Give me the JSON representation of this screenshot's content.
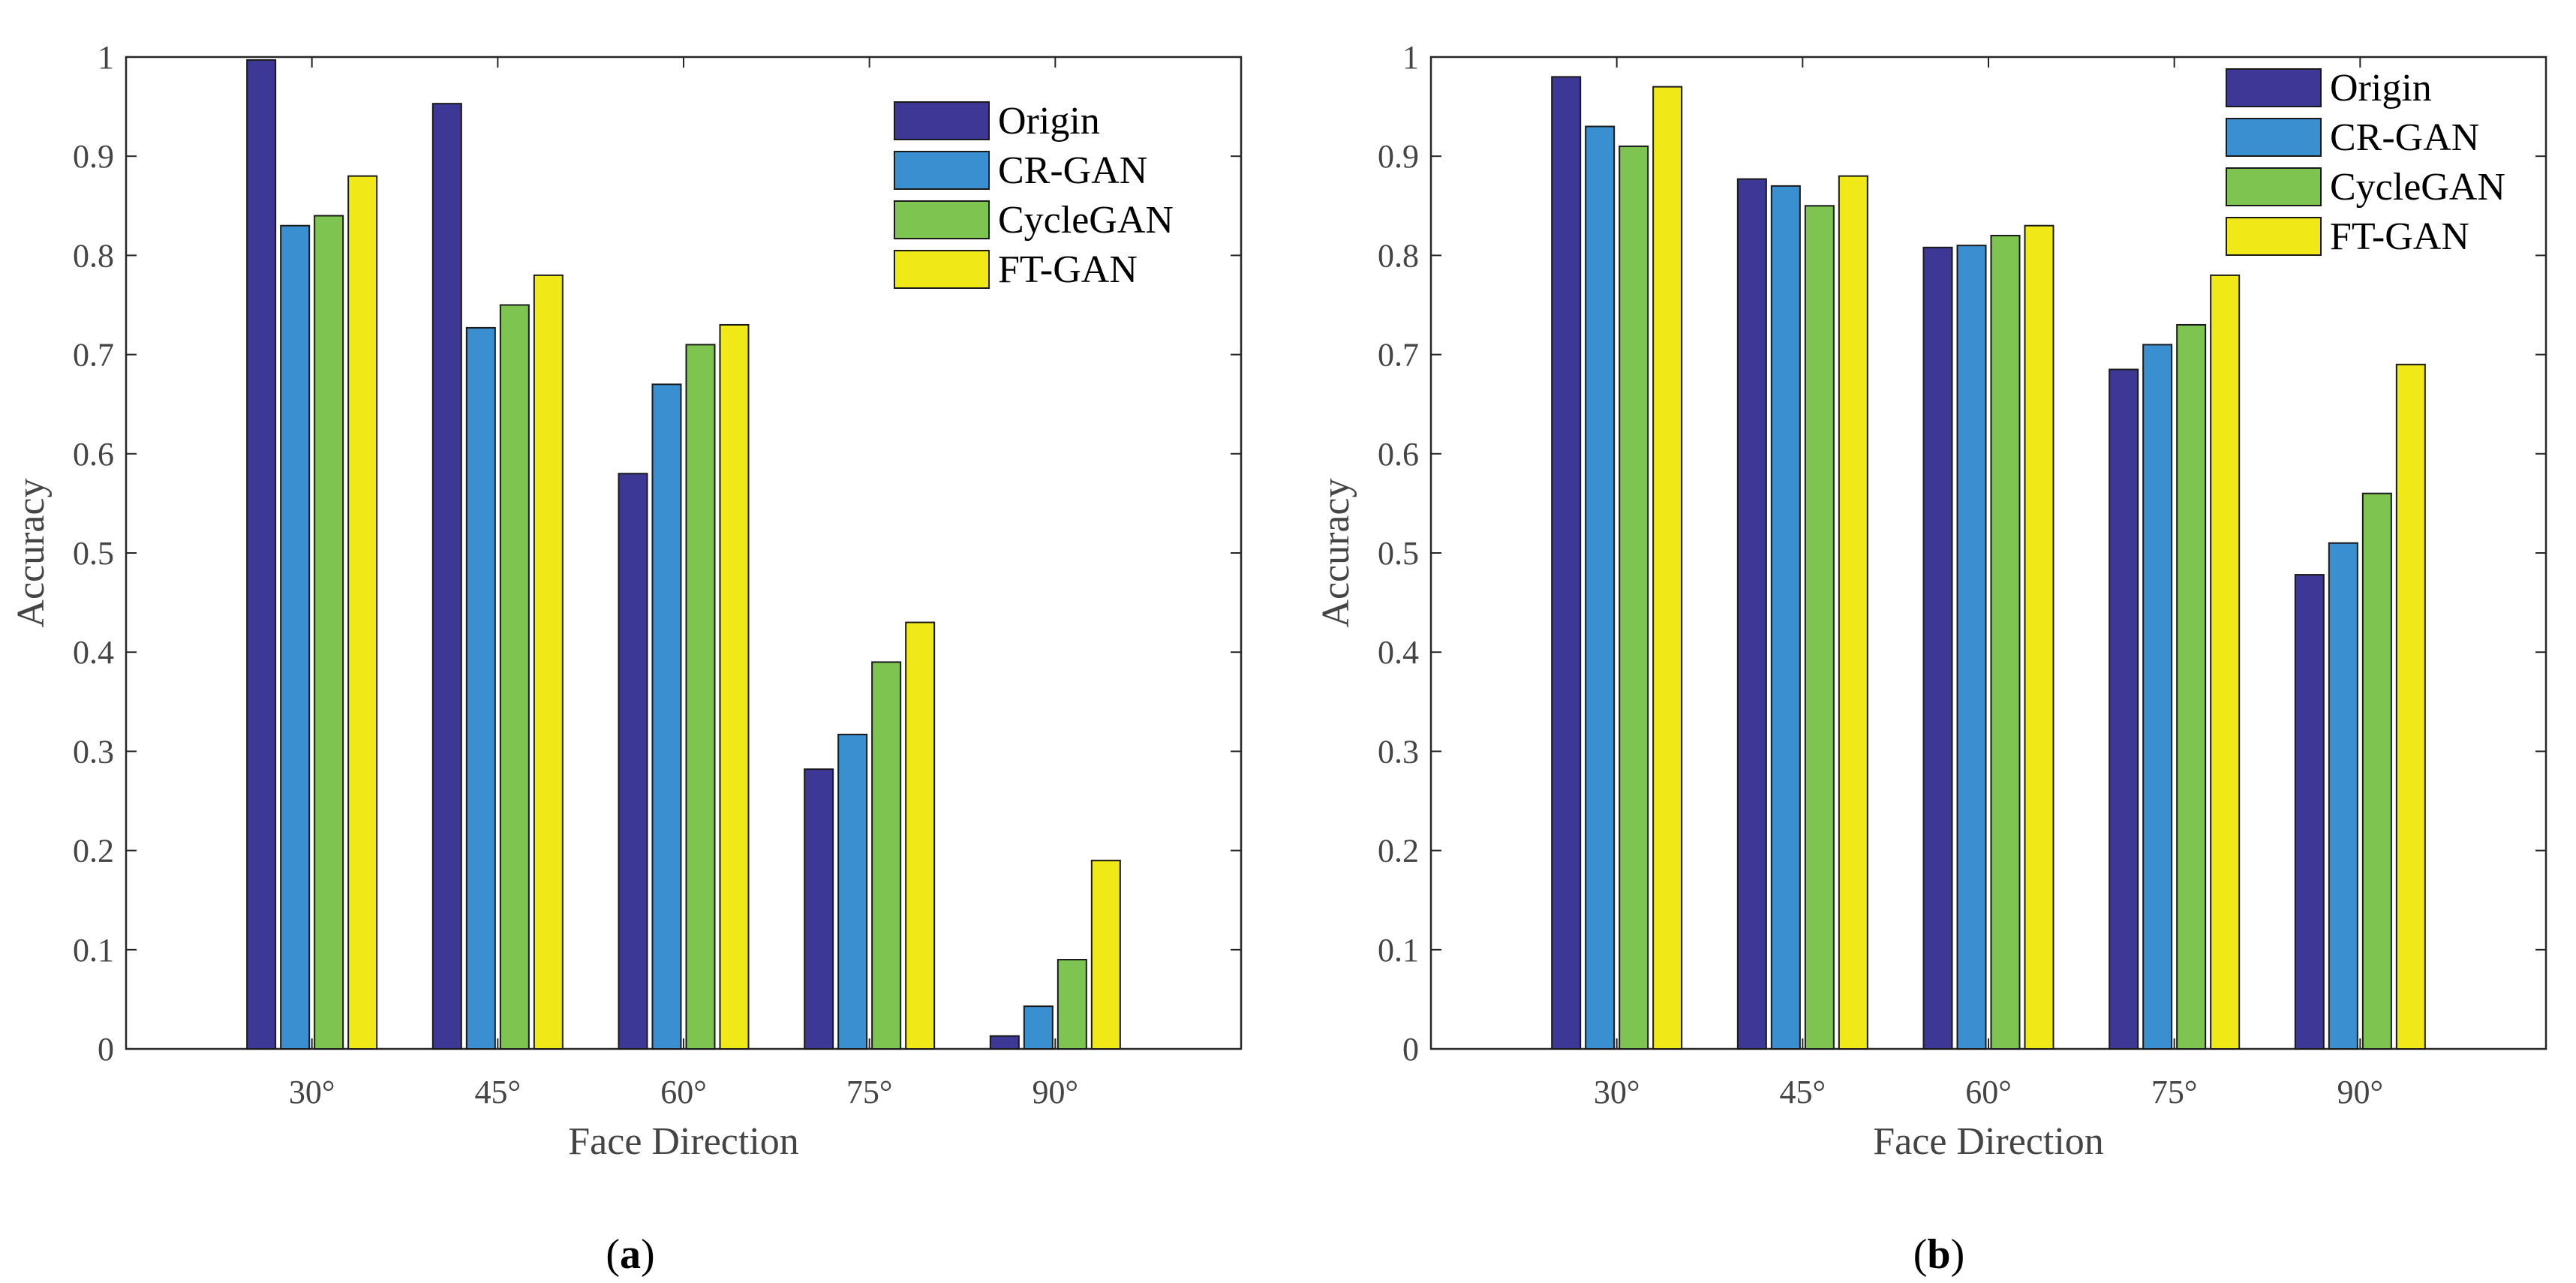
{
  "chart_data": [
    {
      "type": "bar",
      "panel": "(a)",
      "caption_letter": "a",
      "categories": [
        "30°",
        "45°",
        "60°",
        "75°",
        "90°"
      ],
      "series": [
        {
          "name": "Origin",
          "color": "#3d3896",
          "values": [
            0.997,
            0.953,
            0.58,
            0.282,
            0.013
          ]
        },
        {
          "name": "CR-GAN",
          "color": "#3a8fd1",
          "values": [
            0.83,
            0.727,
            0.67,
            0.317,
            0.043
          ]
        },
        {
          "name": "CycleGAN",
          "color": "#7dc450",
          "values": [
            0.84,
            0.75,
            0.71,
            0.39,
            0.09
          ]
        },
        {
          "name": "FT-GAN",
          "color": "#f0e817",
          "values": [
            0.88,
            0.78,
            0.73,
            0.43,
            0.19
          ]
        }
      ],
      "xlabel": "Face Direction",
      "ylabel": "Accuracy",
      "ylim": [
        0,
        1
      ],
      "yticks": [
        "0",
        "0.1",
        "0.2",
        "0.3",
        "0.4",
        "0.5",
        "0.6",
        "0.7",
        "0.8",
        "0.9",
        "1"
      ],
      "legend_position": "top-right"
    },
    {
      "type": "bar",
      "panel": "(b)",
      "caption_letter": "b",
      "categories": [
        "30°",
        "45°",
        "60°",
        "75°",
        "90°"
      ],
      "series": [
        {
          "name": "Origin",
          "color": "#3d3896",
          "values": [
            0.98,
            0.877,
            0.808,
            0.685,
            0.478
          ]
        },
        {
          "name": "CR-GAN",
          "color": "#3a8fd1",
          "values": [
            0.93,
            0.87,
            0.81,
            0.71,
            0.51
          ]
        },
        {
          "name": "CycleGAN",
          "color": "#7dc450",
          "values": [
            0.91,
            0.85,
            0.82,
            0.73,
            0.56
          ]
        },
        {
          "name": "FT-GAN",
          "color": "#f0e817",
          "values": [
            0.97,
            0.88,
            0.83,
            0.78,
            0.69
          ]
        }
      ],
      "xlabel": "Face Direction",
      "ylabel": "Accuracy",
      "ylim": [
        0,
        1
      ],
      "yticks": [
        "0",
        "0.1",
        "0.2",
        "0.3",
        "0.4",
        "0.5",
        "0.6",
        "0.7",
        "0.8",
        "0.9",
        "1"
      ],
      "legend_position": "top-right"
    }
  ]
}
